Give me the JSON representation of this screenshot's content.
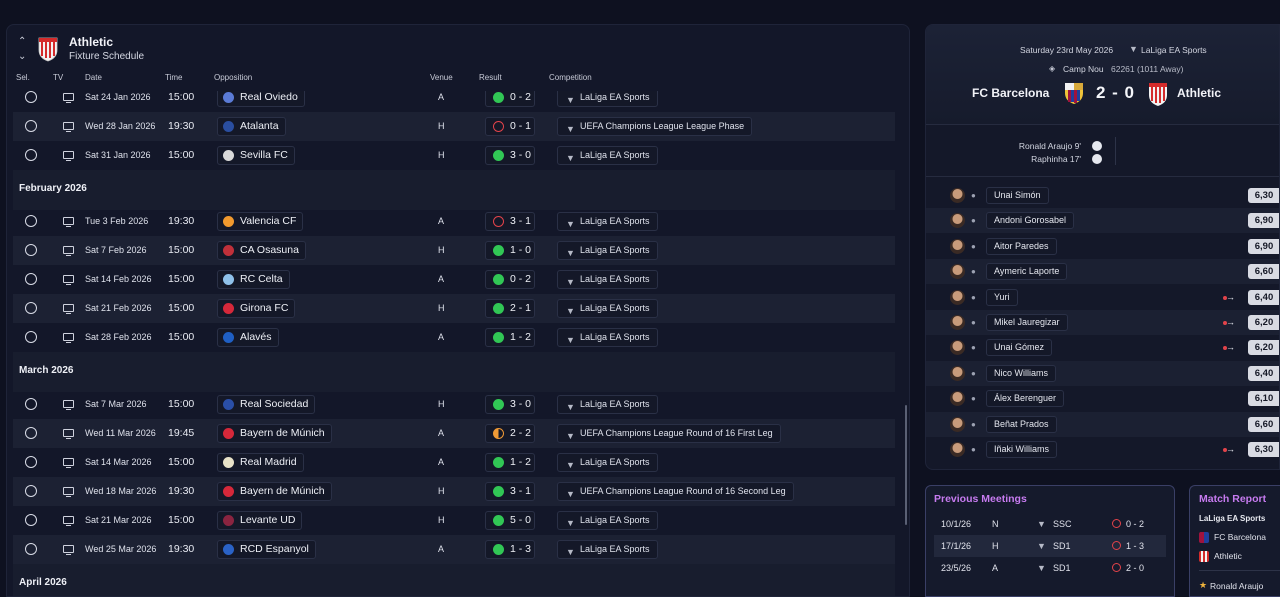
{
  "header": {
    "club_name": "Athletic",
    "screen_name": "Fixture Schedule"
  },
  "columns": [
    "Sel.",
    "TV",
    "Date",
    "Time",
    "Opposition",
    "Venue",
    "Result",
    "Competition"
  ],
  "months": [
    "February 2026",
    "March 2026",
    "April 2026"
  ],
  "fixtures": [
    {
      "date": "Sat 24 Jan 2026",
      "time": "15:00",
      "opp": "Real Oviedo",
      "venue": "A",
      "result": "0 - 2",
      "outcome": "win",
      "comp": "LaLiga EA Sports",
      "badge": "#5b7bd6"
    },
    {
      "date": "Wed 28 Jan 2026",
      "time": "19:30",
      "opp": "Atalanta",
      "venue": "H",
      "result": "0 - 1",
      "outcome": "loss",
      "comp": "UEFA Champions League League Phase",
      "badge": "#2a4ea0"
    },
    {
      "date": "Sat 31 Jan 2026",
      "time": "15:00",
      "opp": "Sevilla FC",
      "venue": "H",
      "result": "3 - 0",
      "outcome": "win",
      "comp": "LaLiga EA Sports",
      "badge": "#d9d9d9"
    },
    {
      "date": "Tue 3 Feb 2026",
      "time": "19:30",
      "opp": "Valencia CF",
      "venue": "A",
      "result": "3 - 1",
      "outcome": "loss",
      "comp": "LaLiga EA Sports",
      "badge": "#f29a2e"
    },
    {
      "date": "Sat 7 Feb 2026",
      "time": "15:00",
      "opp": "CA Osasuna",
      "venue": "H",
      "result": "1 - 0",
      "outcome": "win",
      "comp": "LaLiga EA Sports",
      "badge": "#c0303a"
    },
    {
      "date": "Sat 14 Feb 2026",
      "time": "15:00",
      "opp": "RC Celta",
      "venue": "A",
      "result": "0 - 2",
      "outcome": "win",
      "comp": "LaLiga EA Sports",
      "badge": "#8fc1ea"
    },
    {
      "date": "Sat 21 Feb 2026",
      "time": "15:00",
      "opp": "Girona FC",
      "venue": "H",
      "result": "2 - 1",
      "outcome": "win",
      "comp": "LaLiga EA Sports",
      "badge": "#d6283a"
    },
    {
      "date": "Sat 28 Feb 2026",
      "time": "15:00",
      "opp": "Alavés",
      "venue": "A",
      "result": "1 - 2",
      "outcome": "win",
      "comp": "LaLiga EA Sports",
      "badge": "#1f5fc4"
    },
    {
      "date": "Sat 7 Mar 2026",
      "time": "15:00",
      "opp": "Real Sociedad",
      "venue": "H",
      "result": "3 - 0",
      "outcome": "win",
      "comp": "LaLiga EA Sports",
      "badge": "#2a4fa8"
    },
    {
      "date": "Wed 11 Mar 2026",
      "time": "19:45",
      "opp": "Bayern de Múnich",
      "venue": "A",
      "result": "2 - 2",
      "outcome": "draw",
      "comp": "UEFA Champions League Round of 16 First Leg",
      "badge": "#d6283a"
    },
    {
      "date": "Sat 14 Mar 2026",
      "time": "15:00",
      "opp": "Real Madrid",
      "venue": "A",
      "result": "1 - 2",
      "outcome": "win",
      "comp": "LaLiga EA Sports",
      "badge": "#e8e2c8"
    },
    {
      "date": "Wed 18 Mar 2026",
      "time": "19:30",
      "opp": "Bayern de Múnich",
      "venue": "H",
      "result": "3 - 1",
      "outcome": "win",
      "comp": "UEFA Champions League Round of 16 Second Leg",
      "badge": "#d6283a"
    },
    {
      "date": "Sat 21 Mar 2026",
      "time": "15:00",
      "opp": "Levante UD",
      "venue": "H",
      "result": "5 - 0",
      "outcome": "win",
      "comp": "LaLiga EA Sports",
      "badge": "#8a2440"
    },
    {
      "date": "Wed 25 Mar 2026",
      "time": "19:30",
      "opp": "RCD Espanyol",
      "venue": "A",
      "result": "1 - 3",
      "outcome": "win",
      "comp": "LaLiga EA Sports",
      "badge": "#2a62c6"
    }
  ],
  "match": {
    "date": "Saturday 23rd May 2026",
    "competition": "LaLiga EA Sports",
    "venue": "Camp Nou",
    "attendance": "62261 (1011 Away)",
    "home": "FC Barcelona",
    "away": "Athletic",
    "score": "2 - 0",
    "scorers": [
      "Ronald Araujo 9'",
      "Raphinha 17'"
    ],
    "players": [
      {
        "name": "Unai Simón",
        "rating": "6,30",
        "sub": false
      },
      {
        "name": "Andoni Gorosabel",
        "rating": "6,90",
        "sub": false
      },
      {
        "name": "Aitor Paredes",
        "rating": "6,90",
        "sub": false
      },
      {
        "name": "Aymeric Laporte",
        "rating": "6,60",
        "sub": false
      },
      {
        "name": "Yuri",
        "rating": "6,40",
        "sub": true
      },
      {
        "name": "Mikel Jauregizar",
        "rating": "6,20",
        "sub": true
      },
      {
        "name": "Unai Gómez",
        "rating": "6,20",
        "sub": true
      },
      {
        "name": "Nico Williams",
        "rating": "6,40",
        "sub": false
      },
      {
        "name": "Álex Berenguer",
        "rating": "6,10",
        "sub": false
      },
      {
        "name": "Beñat Prados",
        "rating": "6,60",
        "sub": false
      },
      {
        "name": "Iñaki Williams",
        "rating": "6,30",
        "sub": true
      }
    ]
  },
  "previous_meetings": {
    "title": "Previous Meetings",
    "rows": [
      {
        "date": "10/1/26",
        "venue": "N",
        "comp": "SSC",
        "score": "0 - 2"
      },
      {
        "date": "17/1/26",
        "venue": "H",
        "comp": "SD1",
        "score": "1 - 3"
      },
      {
        "date": "23/5/26",
        "venue": "A",
        "comp": "SD1",
        "score": "2 - 0"
      }
    ]
  },
  "match_report": {
    "title": "Match Report",
    "competition": "LaLiga EA Sports",
    "home": "FC Barcelona",
    "away": "Athletic",
    "scorer": "Ronald Araujo"
  },
  "colors": {
    "win": "#31c755",
    "loss": "#e2434a",
    "draw": "#f09a36",
    "accent": "#c77bf0"
  }
}
